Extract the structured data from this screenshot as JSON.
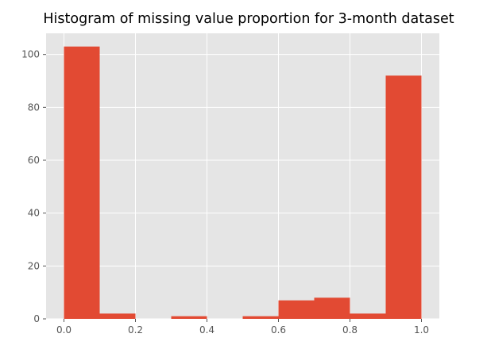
{
  "colors": {
    "bar": "#E24A33",
    "plot_background": "#E5E5E5",
    "grid": "#FFFFFF",
    "tick_text": "#555555",
    "title_text": "#000000"
  },
  "chart_data": {
    "type": "bar",
    "subtype": "histogram",
    "title": "Histogram of missing value proportion for 3-month dataset",
    "xlabel": "",
    "ylabel": "",
    "xlim": [
      -0.05,
      1.05
    ],
    "ylim": [
      0,
      108
    ],
    "grid": true,
    "legend": "none",
    "bin_edges": [
      0.0,
      0.1,
      0.2,
      0.3,
      0.4,
      0.5,
      0.6,
      0.7,
      0.8,
      0.9,
      1.0
    ],
    "values": [
      103,
      2,
      0,
      1,
      0,
      1,
      7,
      8,
      2,
      92
    ],
    "x_ticks": [
      0.0,
      0.2,
      0.4,
      0.6,
      0.8,
      1.0
    ],
    "x_tick_labels": [
      "0.0",
      "0.2",
      "0.4",
      "0.6",
      "0.8",
      "1.0"
    ],
    "y_ticks": [
      0,
      20,
      40,
      60,
      80,
      100
    ],
    "y_tick_labels": [
      "0",
      "20",
      "40",
      "60",
      "80",
      "100"
    ]
  }
}
